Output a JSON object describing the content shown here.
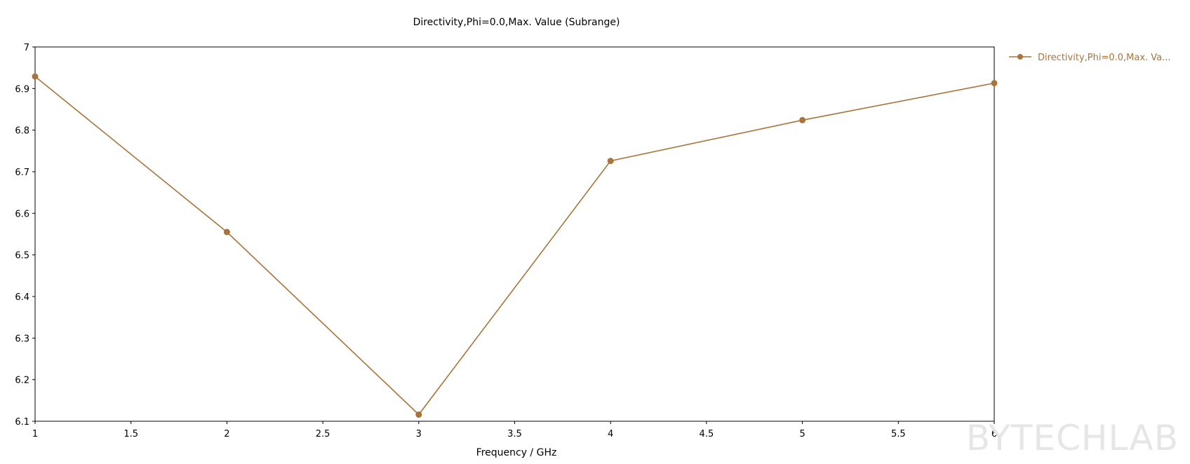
{
  "chart_data": {
    "type": "line",
    "title": "Directivity,Phi=0.0,Max. Value (Subrange)",
    "xlabel": "Frequency / GHz",
    "ylabel": "",
    "xlim": [
      1,
      6
    ],
    "ylim": [
      6.1,
      7
    ],
    "x_ticks": [
      "1",
      "1.5",
      "2",
      "2.5",
      "3",
      "3.5",
      "4",
      "4.5",
      "5",
      "5.5",
      "6"
    ],
    "y_ticks": [
      "7",
      "6.9",
      "6.8",
      "6.7",
      "6.6",
      "6.5",
      "6.4",
      "6.3",
      "6.2",
      "6.1"
    ],
    "grid": true,
    "grid_style": "dotted",
    "legend_position": "top-right, outside plot",
    "series": [
      {
        "name": "Directivity,Phi=0.0,Max. Va...",
        "color": "#a9743c",
        "x": [
          1,
          2,
          3,
          4,
          5,
          6
        ],
        "y": [
          6.929,
          6.555,
          6.116,
          6.726,
          6.824,
          6.913
        ]
      }
    ]
  },
  "watermark": "BYTECHLAB"
}
